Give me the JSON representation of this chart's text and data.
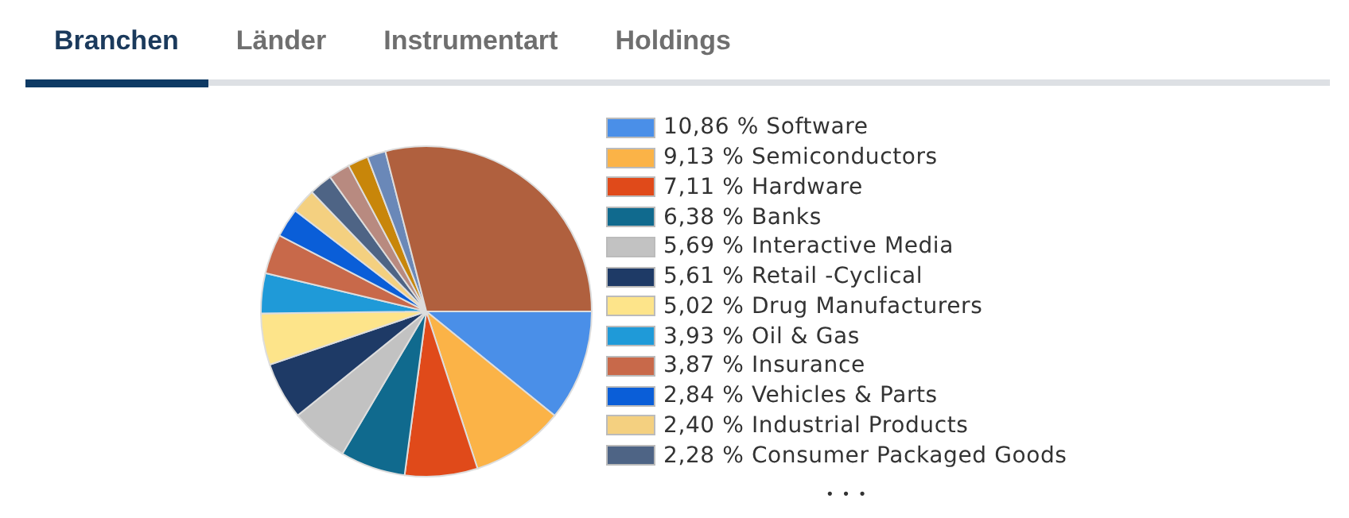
{
  "chart_data": {
    "type": "pie",
    "categories": [
      "Software",
      "Semiconductors",
      "Hardware",
      "Banks",
      "Interactive Media",
      "Retail -Cyclical",
      "Drug Manufacturers",
      "Oil & Gas",
      "Insurance",
      "Vehicles & Parts",
      "Industrial Products",
      "Consumer Packaged Goods",
      null,
      null,
      null,
      null
    ],
    "values": [
      10.86,
      9.13,
      7.11,
      6.38,
      5.69,
      5.61,
      5.02,
      3.93,
      3.87,
      2.84,
      2.4,
      2.28,
      2.1,
      2.0,
      1.8,
      28.98
    ],
    "value_labels": [
      "10,86 %",
      "9,13 %",
      "7,11 %",
      "6,38 %",
      "5,69 %",
      "5,61 %",
      "5,02 %",
      "3,93 %",
      "3,87 %",
      "2,84 %",
      "2,40 %",
      "2,28 %",
      null,
      null,
      null,
      null
    ],
    "colors": [
      "#4a8fe8",
      "#fbb347",
      "#e04a1a",
      "#106a8e",
      "#c2c2c2",
      "#1e3a66",
      "#fde48a",
      "#1f9ad8",
      "#c8694a",
      "#0a5ed8",
      "#f4d080",
      "#4e6485",
      "#b88a80",
      "#c8860a",
      "#6a88b8",
      "#b0603e"
    ],
    "legend": "right",
    "annotations": [
      "Branchen",
      "Länder",
      "Instrumentart",
      "Holdings",
      "• • •"
    ]
  }
}
